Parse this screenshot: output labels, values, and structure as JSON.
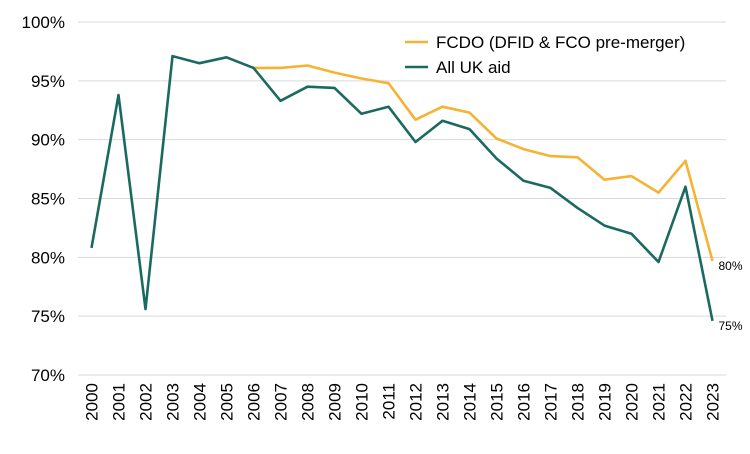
{
  "chart_data": {
    "type": "line",
    "x": [
      "2000",
      "2001",
      "2002",
      "2003",
      "2004",
      "2005",
      "2006",
      "2007",
      "2008",
      "2009",
      "2010",
      "2011",
      "2012",
      "2013",
      "2014",
      "2015",
      "2016",
      "2017",
      "2018",
      "2019",
      "2020",
      "2021",
      "2022",
      "2023"
    ],
    "ylim": [
      70,
      100
    ],
    "yticks": [
      "70%",
      "75%",
      "80%",
      "85%",
      "90%",
      "95%",
      "100%"
    ],
    "grid": true,
    "legend_position": "top-right",
    "series": [
      {
        "name": "FCDO (DFID & FCO pre-merger)",
        "color": "#F5B335",
        "values": [
          null,
          null,
          null,
          null,
          null,
          null,
          96.1,
          96.1,
          96.3,
          95.7,
          95.2,
          94.8,
          91.7,
          92.8,
          92.3,
          90.1,
          89.2,
          88.6,
          88.5,
          86.6,
          86.9,
          85.5,
          88.2,
          79.7
        ],
        "end_label": "80%"
      },
      {
        "name": "All UK aid",
        "color": "#1A6A61",
        "values": [
          80.8,
          93.8,
          75.6,
          97.1,
          96.5,
          97.0,
          96.1,
          93.3,
          94.5,
          94.4,
          92.2,
          92.8,
          89.8,
          91.6,
          90.9,
          88.4,
          86.5,
          85.9,
          84.2,
          82.7,
          82.0,
          79.6,
          86.0,
          74.6
        ],
        "end_label": "75%"
      }
    ]
  }
}
